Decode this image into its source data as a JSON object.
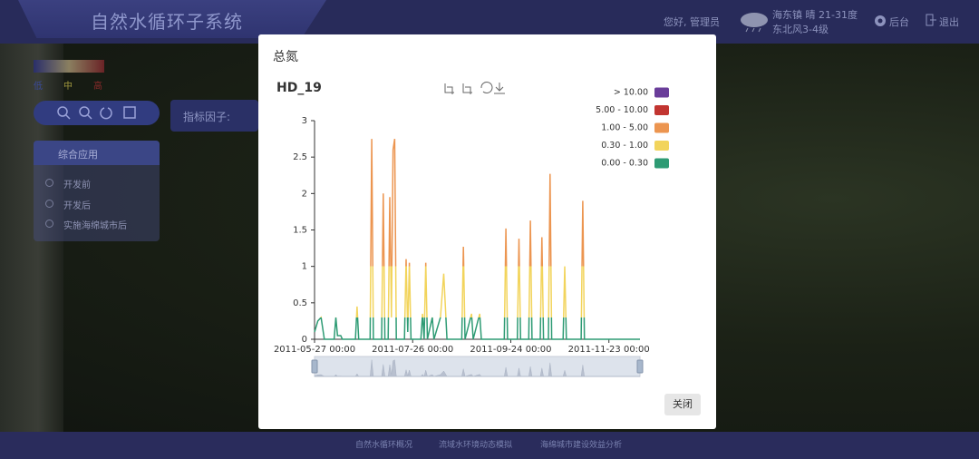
{
  "header": {
    "title": "自然水循环子系统",
    "greeting": "您好, 管理员",
    "weather": "海东镇 晴 21-31度",
    "wind": "东北风3-4级",
    "admin": "后台",
    "logout": "退出"
  },
  "map_legend": {
    "labels": [
      "低",
      "中",
      "高"
    ]
  },
  "toolbar": {
    "factor_label": "指标因子:"
  },
  "panel": {
    "title": "综合应用",
    "options": [
      "开发前",
      "开发后",
      "实施海绵城市后"
    ]
  },
  "footer": {
    "links": [
      "自然水循环概况",
      "流域水环境动态模拟",
      "海绵城市建设效益分析"
    ]
  },
  "modal": {
    "title": "总氮",
    "close": "关闭"
  },
  "chart_data": {
    "type": "line",
    "title": "HD_19",
    "x": [
      "2011-05-27",
      "2011-05-29",
      "2011-05-31",
      "2011-06-02",
      "2011-06-08",
      "2011-06-09",
      "2011-06-10",
      "2011-06-12",
      "2011-06-13",
      "2011-06-21",
      "2011-06-22",
      "2011-06-23",
      "2011-06-30",
      "2011-07-01",
      "2011-07-02",
      "2011-07-07",
      "2011-07-08",
      "2011-07-09",
      "2011-07-11",
      "2011-07-12",
      "2011-07-13",
      "2011-07-14",
      "2011-07-15",
      "2011-07-16",
      "2011-07-21",
      "2011-07-22",
      "2011-07-23",
      "2011-07-24",
      "2011-07-25",
      "2011-07-31",
      "2011-08-01",
      "2011-08-02",
      "2011-08-03",
      "2011-08-04",
      "2011-08-07",
      "2011-08-08",
      "2011-08-12",
      "2011-08-14",
      "2011-08-16",
      "2011-08-25",
      "2011-08-26",
      "2011-08-27",
      "2011-08-31",
      "2011-09-01",
      "2011-09-05",
      "2011-09-06",
      "2011-09-20",
      "2011-09-21",
      "2011-09-22",
      "2011-09-28",
      "2011-09-29",
      "2011-09-30",
      "2011-10-05",
      "2011-10-06",
      "2011-10-07",
      "2011-10-12",
      "2011-10-13",
      "2011-10-14",
      "2011-10-17",
      "2011-10-18",
      "2011-10-19",
      "2011-10-26",
      "2011-10-27",
      "2011-10-28",
      "2011-11-06",
      "2011-11-07",
      "2011-11-08",
      "2011-12-12"
    ],
    "values": [
      0.1,
      0.25,
      0.3,
      0,
      0,
      0.3,
      0.05,
      0.05,
      0,
      0,
      0.45,
      0,
      0,
      2.75,
      0,
      0,
      2.0,
      0,
      0,
      1.95,
      0.3,
      2.6,
      2.75,
      0,
      0,
      1.1,
      0.1,
      1.05,
      0,
      0,
      0.35,
      0,
      1.05,
      0,
      0.3,
      0,
      0.3,
      0.9,
      0,
      0,
      1.27,
      0,
      0.35,
      0,
      0.35,
      0,
      0,
      1.52,
      0,
      0,
      1.38,
      0,
      0,
      1.63,
      0,
      0,
      1.4,
      0,
      0,
      2.27,
      0,
      0,
      1.0,
      0,
      0,
      1.9,
      0,
      0
    ],
    "xlim": [
      "2011-05-27",
      "2011-12-12"
    ],
    "xticks": [
      "2011-05-27 00:00",
      "2011-07-26 00:00",
      "2011-09-24 00:00",
      "2011-11-23 00:00"
    ],
    "ylim": [
      0,
      3
    ],
    "yticks": [
      0,
      0.5,
      1,
      1.5,
      2,
      2.5,
      3
    ],
    "pieces": [
      {
        "label": "> 10.00",
        "min": 10,
        "color": "#6a3d9a"
      },
      {
        "label": "5.00 - 10.00",
        "min": 5,
        "max": 10,
        "color": "#c23531"
      },
      {
        "label": "1.00 - 5.00",
        "min": 1,
        "max": 5,
        "color": "#ec9550"
      },
      {
        "label": "0.30 - 1.00",
        "min": 0.3,
        "max": 1,
        "color": "#f2d45c"
      },
      {
        "label": "0.00 - 0.30",
        "min": 0,
        "max": 0.3,
        "color": "#2e9b74"
      }
    ]
  }
}
